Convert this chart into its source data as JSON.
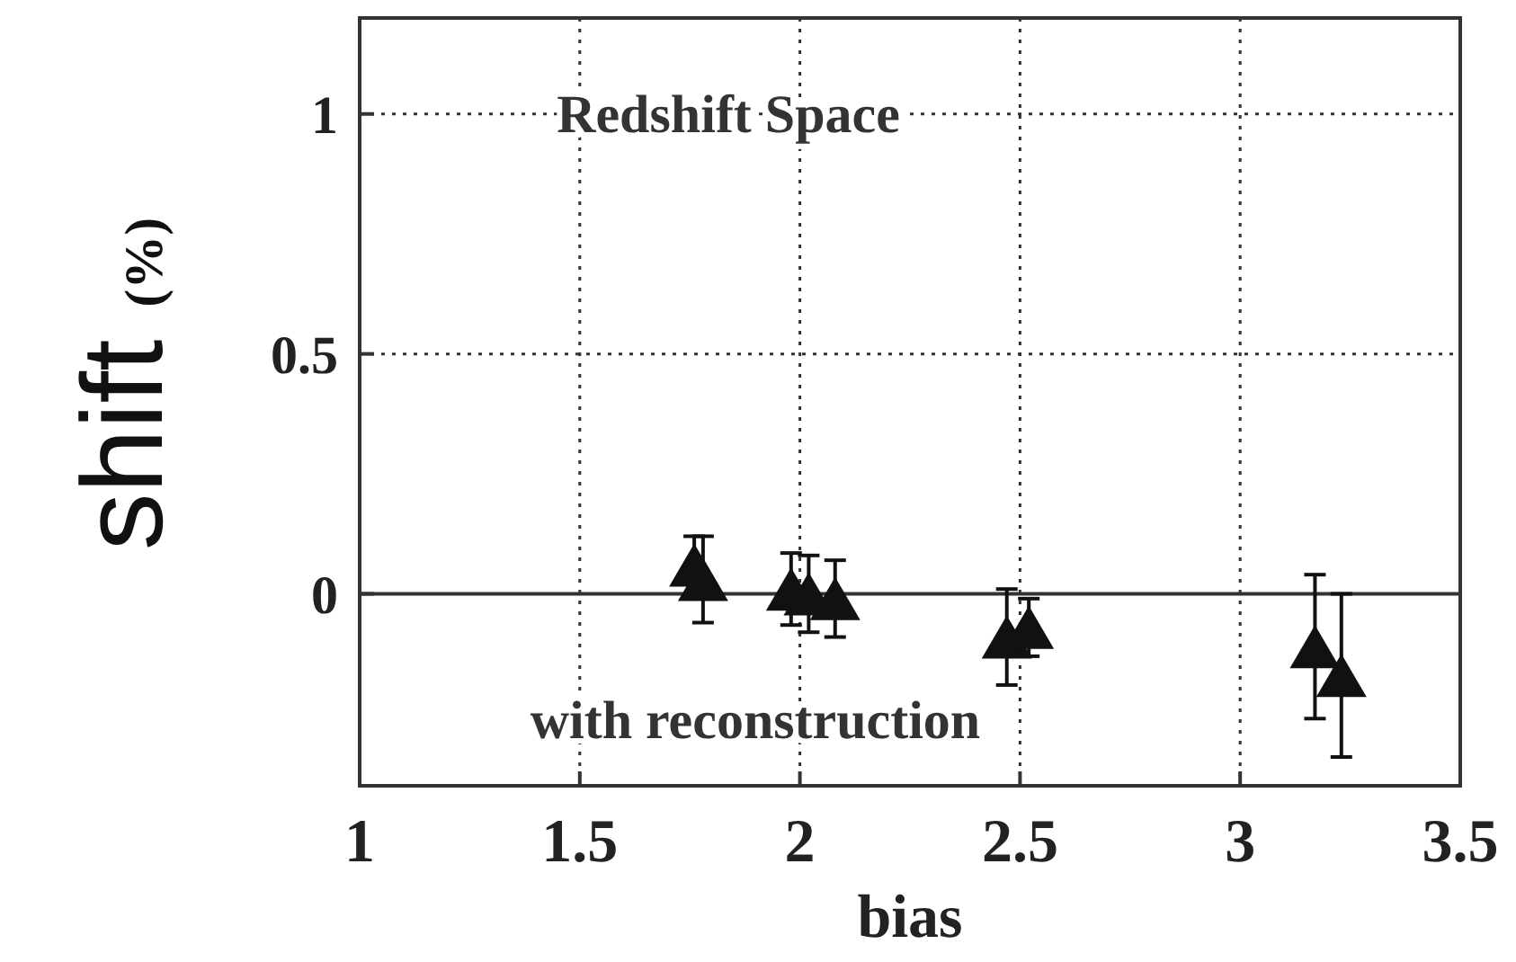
{
  "chart_data": {
    "type": "scatter",
    "xlabel": "bias",
    "ylabel": "shift (%)",
    "annotations": [
      "Redshift Space",
      "with reconstruction"
    ],
    "x": [
      1.76,
      1.78,
      1.98,
      2.02,
      2.08,
      2.47,
      2.52,
      3.17,
      3.23
    ],
    "values": [
      0.06,
      0.03,
      0.01,
      0,
      -0.01,
      -0.09,
      -0.07,
      -0.11,
      -0.17
    ],
    "errors": [
      0.06,
      0.09,
      0.075,
      0.08,
      0.08,
      0.1,
      0.06,
      0.15,
      0.17
    ],
    "color": "#111111",
    "marker": "triangle",
    "xlim": [
      1,
      3.5
    ],
    "xticks": [
      1,
      1.5,
      2,
      2.5,
      3,
      3.5
    ],
    "ylim": [
      -0.4,
      1.2
    ],
    "yticks": [
      0,
      0.5,
      1
    ],
    "grid": true,
    "line_style": "dotted",
    "ref_lines": [
      {
        "axis": "y",
        "value": 0,
        "line_style": "solid"
      }
    ]
  }
}
